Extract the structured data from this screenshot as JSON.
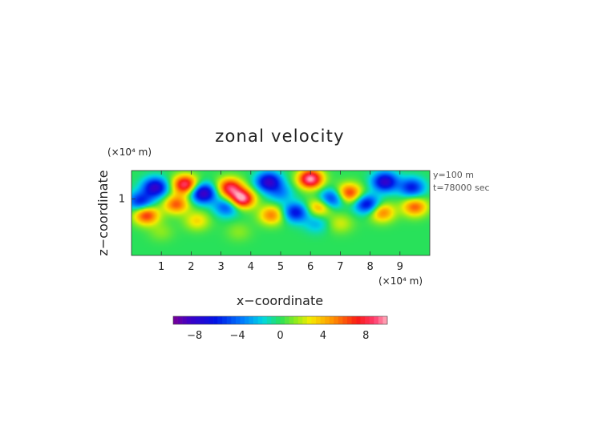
{
  "chart_data": {
    "type": "heatmap",
    "title": "zonal velocity",
    "xlabel": "x−coordinate",
    "ylabel": "z−coordinate",
    "x_unit": "(×10⁴ m)",
    "z_unit": "(×10⁴ m)",
    "xlim": [
      0,
      10
    ],
    "zlim": [
      0,
      1.5
    ],
    "x_ticks": [
      1,
      2,
      3,
      4,
      5,
      6,
      7,
      8,
      9
    ],
    "x_tick_labels": [
      "1",
      "2",
      "3",
      "4",
      "5",
      "6",
      "7",
      "8",
      "9"
    ],
    "z_ticks": [
      1
    ],
    "z_tick_labels": [
      "1"
    ],
    "annotations": [
      "y=100  m",
      "t=78000 sec"
    ],
    "colorbar": {
      "min": -10,
      "max": 10,
      "ticks": [
        -8,
        -4,
        0,
        4,
        8
      ],
      "tick_labels": [
        "−8",
        "−4",
        "0",
        "4",
        "8"
      ],
      "colormap": "rainbow (purple-blue-cyan-green-yellow-red-pink)"
    },
    "features": [
      {
        "x": 1.8,
        "z": 1.25,
        "value": 9
      },
      {
        "x": 3.3,
        "z": 1.2,
        "value": 8
      },
      {
        "x": 3.7,
        "z": 1.0,
        "value": 10
      },
      {
        "x": 6.0,
        "z": 1.35,
        "value": 10
      },
      {
        "x": 0.5,
        "z": 0.7,
        "value": 8
      },
      {
        "x": 1.5,
        "z": 0.9,
        "value": 6
      },
      {
        "x": 4.7,
        "z": 0.7,
        "value": 6
      },
      {
        "x": 7.3,
        "z": 1.1,
        "value": 7
      },
      {
        "x": 8.4,
        "z": 0.75,
        "value": 6
      },
      {
        "x": 9.5,
        "z": 0.85,
        "value": 6
      },
      {
        "x": 6.3,
        "z": 0.85,
        "value": 5
      },
      {
        "x": 2.2,
        "z": 0.6,
        "value": 4
      },
      {
        "x": 0.8,
        "z": 1.2,
        "value": -8
      },
      {
        "x": 2.4,
        "z": 1.1,
        "value": -9
      },
      {
        "x": 4.6,
        "z": 1.3,
        "value": -8
      },
      {
        "x": 3.2,
        "z": 0.85,
        "value": -5
      },
      {
        "x": 5.5,
        "z": 0.75,
        "value": -7
      },
      {
        "x": 6.7,
        "z": 1.0,
        "value": -6
      },
      {
        "x": 7.9,
        "z": 0.9,
        "value": -7
      },
      {
        "x": 8.5,
        "z": 1.3,
        "value": -8
      },
      {
        "x": 9.4,
        "z": 1.2,
        "value": -6
      },
      {
        "x": 0.3,
        "z": 0.95,
        "value": -6
      },
      {
        "x": 5.0,
        "z": 1.1,
        "value": -3
      },
      {
        "x": 7.0,
        "z": 0.55,
        "value": 3
      },
      {
        "x": 3.6,
        "z": 0.4,
        "value": 2
      },
      {
        "x": 6.2,
        "z": 0.55,
        "value": -3
      },
      {
        "x": 1.0,
        "z": 0.4,
        "value": 2
      }
    ]
  }
}
